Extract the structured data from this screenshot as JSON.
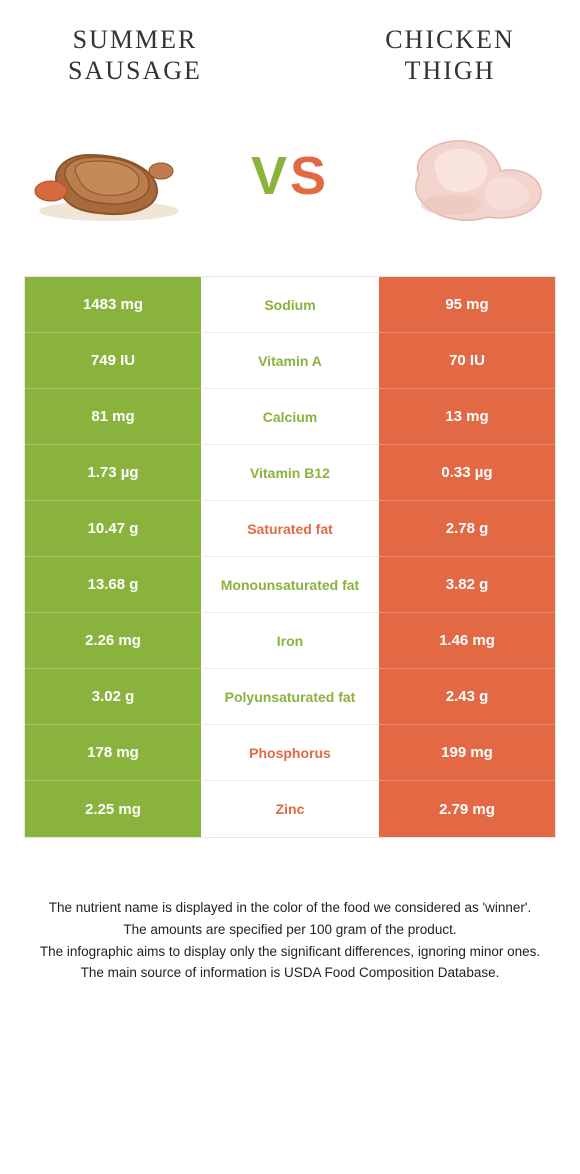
{
  "colors": {
    "left": "#8ab33e",
    "right": "#e26944"
  },
  "titles": {
    "left": "Summer Sausage",
    "right": "Chicken Thigh"
  },
  "vs": {
    "v": "V",
    "s": "S"
  },
  "rows": [
    {
      "nutrient": "Sodium",
      "left": "1483 mg",
      "right": "95 mg",
      "winner": "left"
    },
    {
      "nutrient": "Vitamin A",
      "left": "749 IU",
      "right": "70 IU",
      "winner": "left"
    },
    {
      "nutrient": "Calcium",
      "left": "81 mg",
      "right": "13 mg",
      "winner": "left"
    },
    {
      "nutrient": "Vitamin B12",
      "left": "1.73 µg",
      "right": "0.33 µg",
      "winner": "left"
    },
    {
      "nutrient": "Saturated fat",
      "left": "10.47 g",
      "right": "2.78 g",
      "winner": "right"
    },
    {
      "nutrient": "Monounsaturated fat",
      "left": "13.68 g",
      "right": "3.82 g",
      "winner": "left"
    },
    {
      "nutrient": "Iron",
      "left": "2.26 mg",
      "right": "1.46 mg",
      "winner": "left"
    },
    {
      "nutrient": "Polyunsaturated fat",
      "left": "3.02 g",
      "right": "2.43 g",
      "winner": "left"
    },
    {
      "nutrient": "Phosphorus",
      "left": "178 mg",
      "right": "199 mg",
      "winner": "right"
    },
    {
      "nutrient": "Zinc",
      "left": "2.25 mg",
      "right": "2.79 mg",
      "winner": "right"
    }
  ],
  "footnotes": [
    "The nutrient name is displayed in the color of the food we considered as 'winner'.",
    "The amounts are specified per 100 gram of the product.",
    "The infographic aims to display only the significant differences, ignoring minor ones.",
    "The main source of information is USDA Food Composition Database."
  ]
}
